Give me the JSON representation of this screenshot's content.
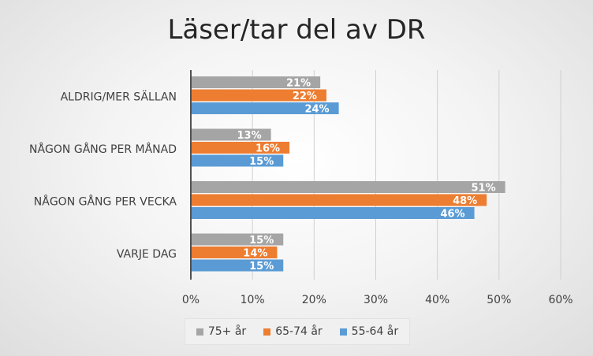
{
  "chart_data": {
    "type": "bar",
    "orientation": "horizontal",
    "title": "Läser/tar del av DR",
    "categories": [
      "VARJE DAG",
      "NÅGON GÅNG PER VECKA",
      "NÅGON GÅNG PER MÅNAD",
      "ALDRIG/MER SÄLLAN"
    ],
    "series": [
      {
        "name": "75+ år",
        "color": "#a5a5a5",
        "values": [
          15,
          51,
          13,
          21
        ],
        "labels": [
          "15%",
          "51%",
          "13%",
          "21%"
        ]
      },
      {
        "name": "65-74 år",
        "color": "#ed7d31",
        "values": [
          14,
          48,
          16,
          22
        ],
        "labels": [
          "14%",
          "48%",
          "16%",
          "22%"
        ]
      },
      {
        "name": "55-64 år",
        "color": "#5b9bd5",
        "values": [
          15,
          46,
          15,
          24
        ],
        "labels": [
          "15%",
          "46%",
          "15%",
          "24%"
        ]
      }
    ],
    "xlim": [
      0,
      60
    ],
    "xticks": [
      0,
      10,
      20,
      30,
      40,
      50,
      60
    ],
    "xtick_labels": [
      "0%",
      "10%",
      "20%",
      "30%",
      "40%",
      "50%",
      "60%"
    ],
    "grid": true,
    "legend_position": "bottom"
  }
}
